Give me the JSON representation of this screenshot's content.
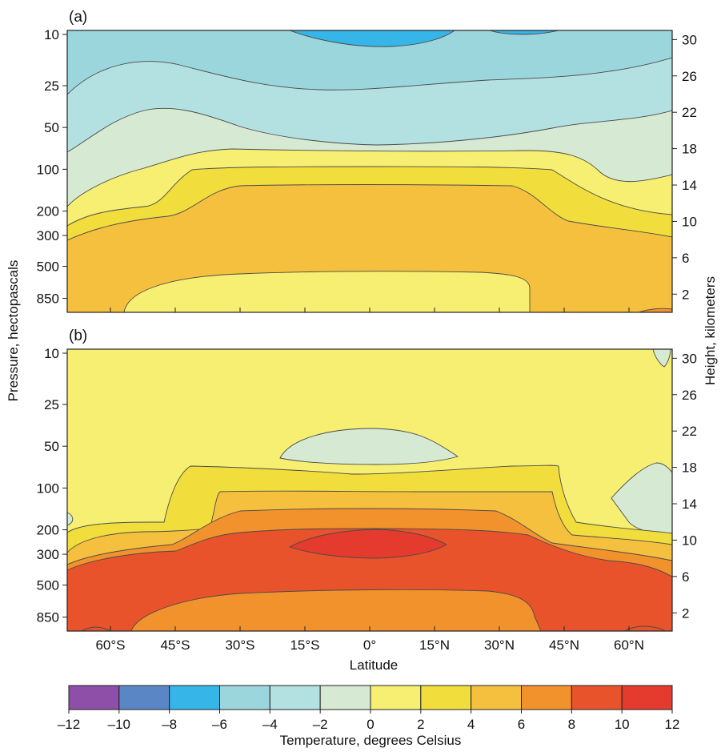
{
  "colors": {
    "lvl_m12_m10": "#8e4fa8",
    "lvl_m10_m8": "#5b86c6",
    "lvl_m8_m6": "#35b5e8",
    "lvl_m6_m4": "#9bd6dd",
    "lvl_m4_m2": "#b3e1e1",
    "lvl_m2_0": "#d6e9d2",
    "lvl_0_2": "#f6ef72",
    "lvl_2_4": "#f1de3d",
    "lvl_4_6": "#f5c03e",
    "lvl_6_8": "#f2922c",
    "lvl_8_10": "#e9532b",
    "lvl_10_12": "#e43b2e"
  },
  "chart_data": {
    "type": "heatmap",
    "subtype": "filled-contour",
    "xlabel": "Latitude",
    "ylabel_left": "Pressure, hectopascals",
    "ylabel_right": "Height, kilometers",
    "x_ticks": [
      "60°S",
      "45°S",
      "30°S",
      "15°S",
      "0°",
      "15°N",
      "30°N",
      "45°N",
      "60°N"
    ],
    "x_values": [
      -60,
      -45,
      -30,
      -15,
      0,
      15,
      30,
      45,
      60
    ],
    "x_range": [
      -70,
      70
    ],
    "pressure_ticks": [
      "10",
      "25",
      "50",
      "100",
      "200",
      "300",
      "500",
      "850"
    ],
    "height_ticks": [
      "30",
      "26",
      "22",
      "18",
      "14",
      "10",
      "6",
      "2"
    ],
    "y_scale": "log pressure",
    "colorbar": {
      "label": "Temperature, degrees Celsius",
      "ticks": [
        "–12",
        "–10",
        "–8",
        "–6",
        "–4",
        "–2",
        "0",
        "2",
        "4",
        "6",
        "8",
        "10",
        "12"
      ],
      "levels": [
        -12,
        -10,
        -8,
        -6,
        -4,
        -2,
        0,
        2,
        4,
        6,
        8,
        10,
        12
      ]
    },
    "panels": [
      {
        "label": "(a)",
        "description_levels": [
          -8,
          -6,
          -4,
          -2,
          0,
          2,
          4,
          6
        ],
        "max_value_range": [
          6,
          8
        ]
      },
      {
        "label": "(b)",
        "description_levels": [
          -2,
          0,
          2,
          4,
          6,
          8,
          10
        ],
        "max_value_range": [
          10,
          12
        ]
      }
    ]
  }
}
